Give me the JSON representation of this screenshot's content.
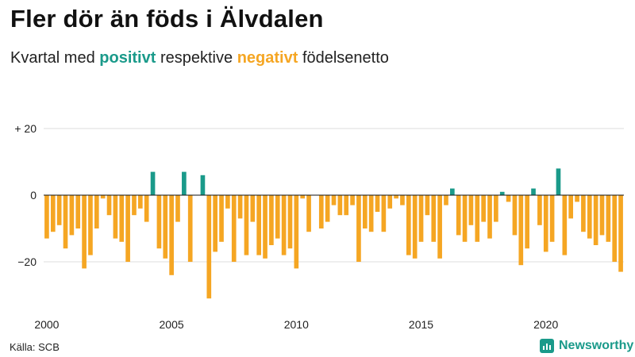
{
  "header": {
    "title": "Fler dör än föds i Älvdalen",
    "subtitle_prefix": "Kvartal med",
    "subtitle_positive": "positivt",
    "subtitle_middle": "respektive",
    "subtitle_negative": "negativt",
    "subtitle_suffix": "födelsenetto"
  },
  "footer": {
    "source": "Källa: SCB",
    "brand": "Newsworthy"
  },
  "colors": {
    "positive": "#1a9a8a",
    "negative": "#f5a623",
    "grid": "#dddddd",
    "zero_line": "#111111"
  },
  "chart_data": {
    "type": "bar",
    "title": "Fler dör än föds i Älvdalen",
    "subtitle": "Kvartal med positivt respektive negativt födelsenetto",
    "xlabel": "",
    "ylabel": "",
    "x_start": 2000,
    "periods_per_year": 4,
    "ylim": [
      -33,
      24
    ],
    "y_ticks": [
      20,
      0,
      -20
    ],
    "y_tick_labels": [
      "+ 20",
      "0",
      "−20"
    ],
    "x_ticks": [
      2000,
      2005,
      2010,
      2015,
      2020
    ],
    "x_tick_labels": [
      "2000",
      "2005",
      "2010",
      "2015",
      "2020"
    ],
    "values": [
      -13,
      -11,
      -9,
      -16,
      -12,
      -10,
      -22,
      -18,
      -10,
      -1,
      -6,
      -13,
      -14,
      -20,
      -6,
      -4,
      -8,
      7,
      -16,
      -19,
      -24,
      -8,
      7,
      -20,
      0,
      6,
      -31,
      -17,
      -14,
      -4,
      -20,
      -7,
      -18,
      -8,
      -18,
      -19,
      -15,
      -13,
      -18,
      -16,
      -22,
      -1,
      -11,
      0,
      -10,
      -8,
      -3,
      -6,
      -6,
      -3,
      -20,
      -10,
      -11,
      -5,
      -11,
      -4,
      -1,
      -3,
      -18,
      -19,
      -14,
      -6,
      -14,
      -19,
      -3,
      2,
      -12,
      -14,
      -9,
      -14,
      -8,
      -13,
      -8,
      1,
      -2,
      -12,
      -21,
      -16,
      2,
      -9,
      -17,
      -14,
      8,
      -18,
      -7,
      -2,
      -11,
      -13,
      -15,
      -12,
      -14,
      -20,
      -23
    ]
  }
}
